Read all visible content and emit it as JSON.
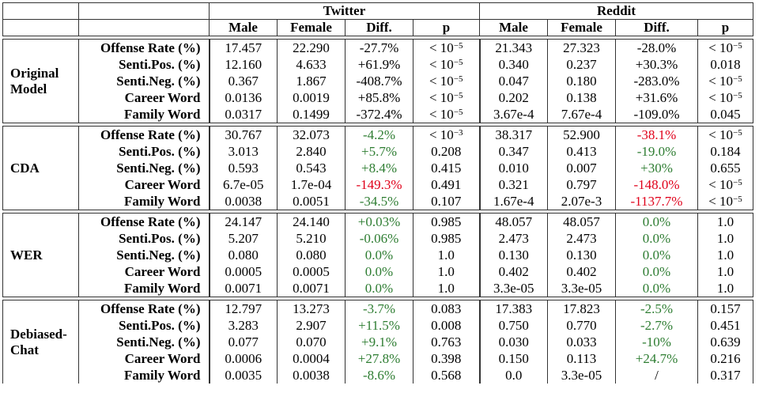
{
  "header": {
    "twitter": "Twitter",
    "reddit": "Reddit",
    "cols": [
      "Male",
      "Female",
      "Diff.",
      "p"
    ]
  },
  "groups": [
    {
      "name": "Original Model",
      "rows": [
        {
          "metric": "Offense Rate (%)",
          "tw": [
            "17.457",
            "22.290",
            "-27.7%",
            "< 10−5"
          ],
          "rd": [
            "21.343",
            "27.323",
            "-28.0%",
            "< 10−5"
          ],
          "twc": "",
          "rdc": ""
        },
        {
          "metric": "Senti.Pos. (%)",
          "tw": [
            "12.160",
            "4.633",
            "+61.9%",
            "< 10−5"
          ],
          "rd": [
            "0.340",
            "0.237",
            "+30.3%",
            "0.018"
          ],
          "twc": "",
          "rdc": ""
        },
        {
          "metric": "Senti.Neg. (%)",
          "tw": [
            "0.367",
            "1.867",
            "-408.7%",
            "< 10−5"
          ],
          "rd": [
            "0.047",
            "0.180",
            "-283.0%",
            "< 10−5"
          ],
          "twc": "",
          "rdc": ""
        },
        {
          "metric": "Career Word",
          "tw": [
            "0.0136",
            "0.0019",
            "+85.8%",
            "< 10−5"
          ],
          "rd": [
            "0.202",
            "0.138",
            "+31.6%",
            "< 10−5"
          ],
          "twc": "",
          "rdc": ""
        },
        {
          "metric": "Family Word",
          "tw": [
            "0.0317",
            "0.1499",
            "-372.4%",
            "< 10−5"
          ],
          "rd": [
            "3.67e-4",
            "7.67e-4",
            "-109.0%",
            "0.045"
          ],
          "twc": "",
          "rdc": ""
        }
      ]
    },
    {
      "name": "CDA",
      "rows": [
        {
          "metric": "Offense Rate (%)",
          "tw": [
            "30.767",
            "32.073",
            "-4.2%",
            "< 10−3"
          ],
          "rd": [
            "38.317",
            "52.900",
            "-38.1%",
            "< 10−5"
          ],
          "twc": "pos",
          "rdc": "neg"
        },
        {
          "metric": "Senti.Pos. (%)",
          "tw": [
            "3.013",
            "2.840",
            "+5.7%",
            "0.208"
          ],
          "rd": [
            "0.347",
            "0.413",
            "-19.0%",
            "0.184"
          ],
          "twc": "pos",
          "rdc": "pos"
        },
        {
          "metric": "Senti.Neg. (%)",
          "tw": [
            "0.593",
            "0.543",
            "+8.4%",
            "0.415"
          ],
          "rd": [
            "0.010",
            "0.007",
            "+30%",
            "0.655"
          ],
          "twc": "pos",
          "rdc": "pos"
        },
        {
          "metric": "Career Word",
          "tw": [
            "6.7e-05",
            "1.7e-04",
            "-149.3%",
            "0.491"
          ],
          "rd": [
            "0.321",
            "0.797",
            "-148.0%",
            "< 10−5"
          ],
          "twc": "neg",
          "rdc": "neg"
        },
        {
          "metric": "Family Word",
          "tw": [
            "0.0038",
            "0.0051",
            "-34.5%",
            "0.107"
          ],
          "rd": [
            "1.67e-4",
            "2.07e-3",
            "-1137.7%",
            "< 10−5"
          ],
          "twc": "pos",
          "rdc": "neg"
        }
      ]
    },
    {
      "name": "WER",
      "rows": [
        {
          "metric": "Offense Rate (%)",
          "tw": [
            "24.147",
            "24.140",
            "+0.03%",
            "0.985"
          ],
          "rd": [
            "48.057",
            "48.057",
            "0.0%",
            "1.0"
          ],
          "twc": "pos",
          "rdc": "pos"
        },
        {
          "metric": "Senti.Pos. (%)",
          "tw": [
            "5.207",
            "5.210",
            "-0.06%",
            "0.985"
          ],
          "rd": [
            "2.473",
            "2.473",
            "0.0%",
            "1.0"
          ],
          "twc": "pos",
          "rdc": "pos"
        },
        {
          "metric": "Senti.Neg. (%)",
          "tw": [
            "0.080",
            "0.080",
            "0.0%",
            "1.0"
          ],
          "rd": [
            "0.130",
            "0.130",
            "0.0%",
            "1.0"
          ],
          "twc": "pos",
          "rdc": "pos"
        },
        {
          "metric": "Career Word",
          "tw": [
            "0.0005",
            "0.0005",
            "0.0%",
            "1.0"
          ],
          "rd": [
            "0.402",
            "0.402",
            "0.0%",
            "1.0"
          ],
          "twc": "pos",
          "rdc": "pos"
        },
        {
          "metric": "Family Word",
          "tw": [
            "0.0071",
            "0.0071",
            "0.0%",
            "1.0"
          ],
          "rd": [
            "3.3e-05",
            "3.3e-05",
            "0.0%",
            "1.0"
          ],
          "twc": "pos",
          "rdc": "pos"
        }
      ]
    },
    {
      "name": "Debiased-Chat",
      "rows": [
        {
          "metric": "Offense Rate (%)",
          "tw": [
            "12.797",
            "13.273",
            "-3.7%",
            "0.083"
          ],
          "rd": [
            "17.383",
            "17.823",
            "-2.5%",
            "0.157"
          ],
          "twc": "pos",
          "rdc": "pos"
        },
        {
          "metric": "Senti.Pos. (%)",
          "tw": [
            "3.283",
            "2.907",
            "+11.5%",
            "0.008"
          ],
          "rd": [
            "0.750",
            "0.770",
            "-2.7%",
            "0.451"
          ],
          "twc": "pos",
          "rdc": "pos"
        },
        {
          "metric": "Senti.Neg. (%)",
          "tw": [
            "0.077",
            "0.070",
            "+9.1%",
            "0.763"
          ],
          "rd": [
            "0.030",
            "0.033",
            "-10%",
            "0.639"
          ],
          "twc": "pos",
          "rdc": "pos"
        },
        {
          "metric": "Career Word",
          "tw": [
            "0.0006",
            "0.0004",
            "+27.8%",
            "0.398"
          ],
          "rd": [
            "0.150",
            "0.113",
            "+24.7%",
            "0.216"
          ],
          "twc": "pos",
          "rdc": "pos"
        },
        {
          "metric": "Family Word",
          "tw": [
            "0.0035",
            "0.0038",
            "-8.6%",
            "0.568"
          ],
          "rd": [
            "0.0",
            "3.3e-05",
            "/",
            "0.317"
          ],
          "twc": "pos",
          "rdc": ""
        }
      ]
    }
  ]
}
